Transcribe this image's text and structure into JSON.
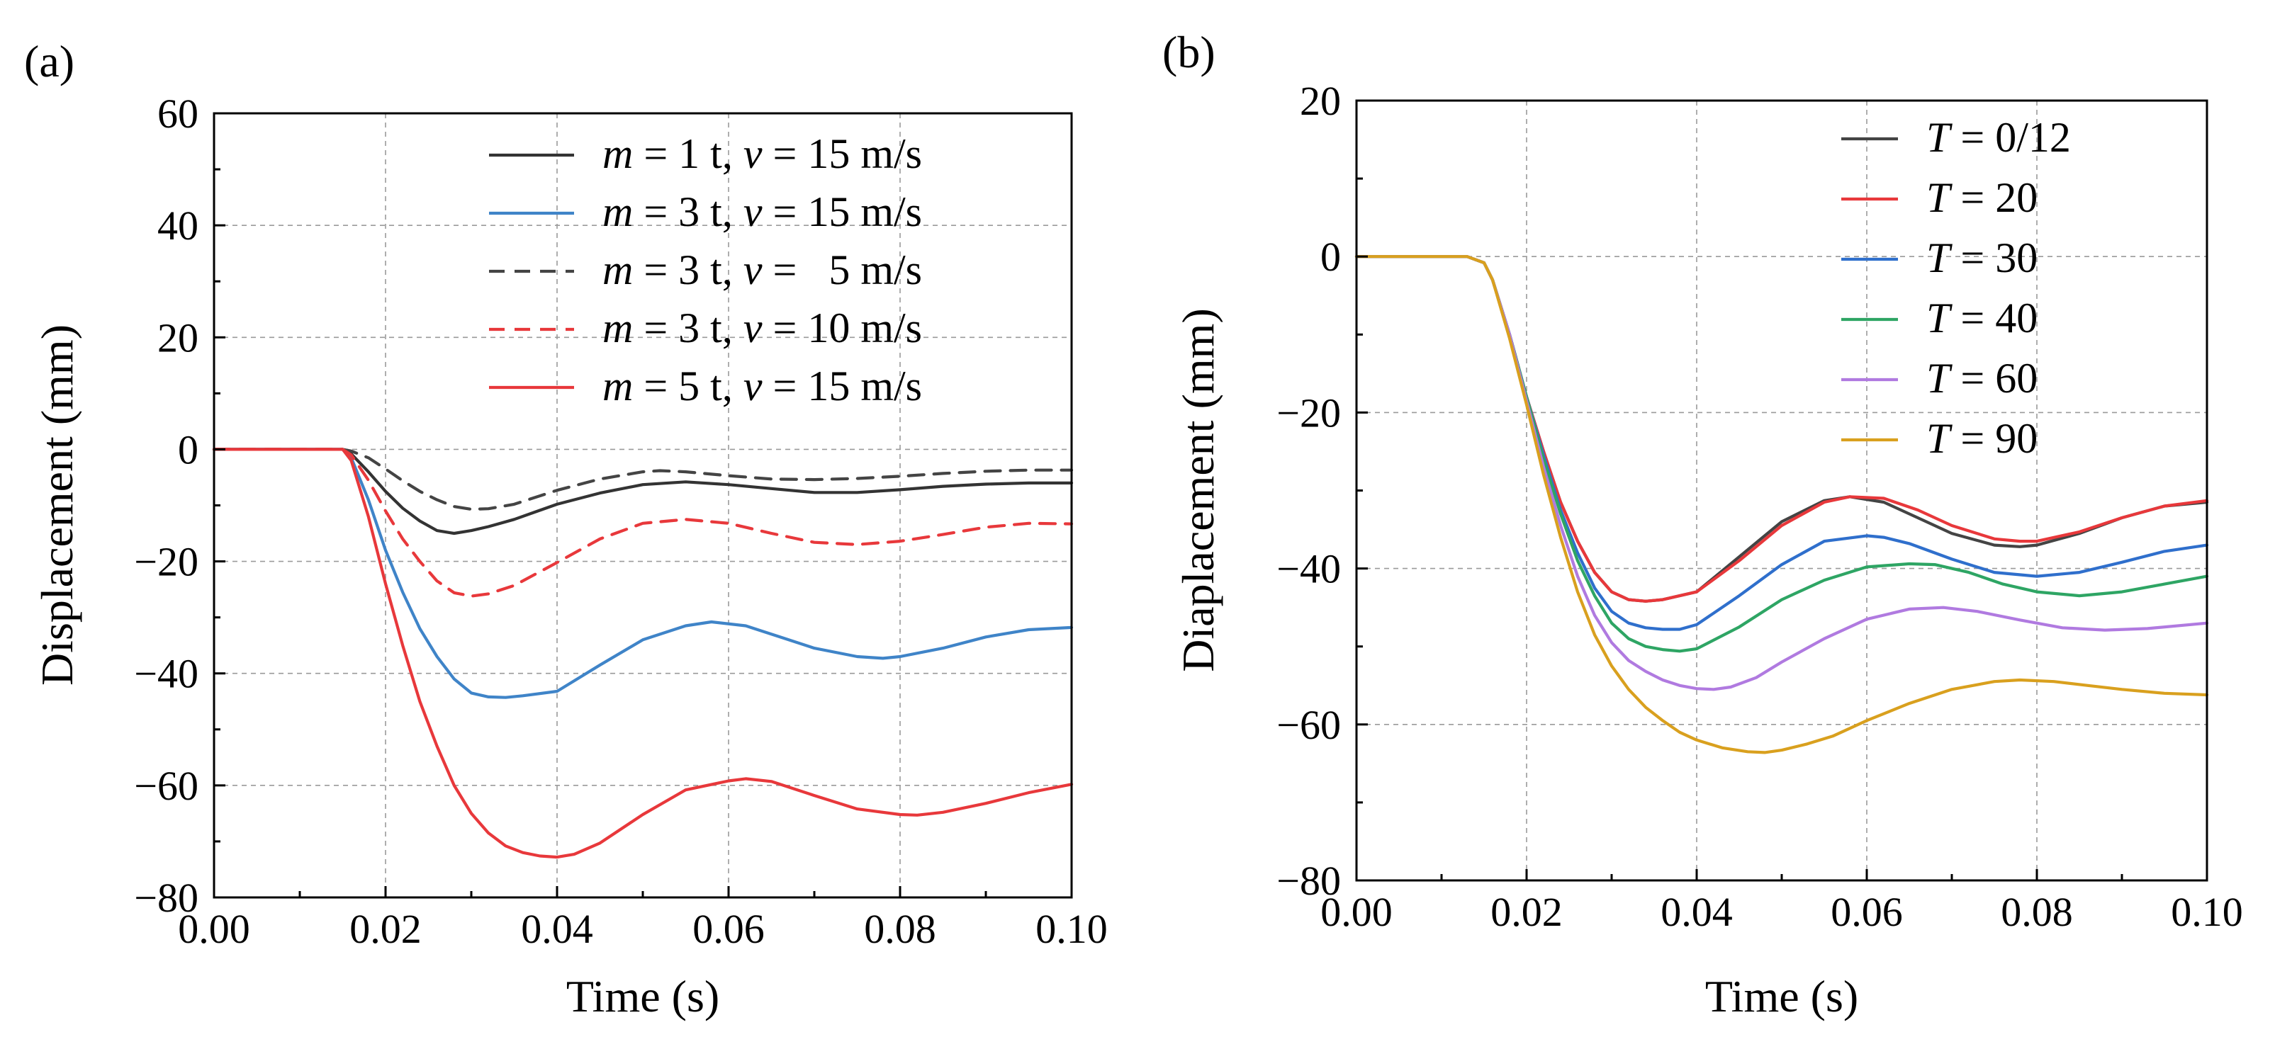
{
  "chart_data": [
    {
      "type": "line",
      "panel_label": "(a)",
      "xlabel": "Time (s)",
      "ylabel": "Displacement (mm)",
      "xlim": [
        0,
        0.1
      ],
      "ylim": [
        -80,
        60
      ],
      "xticks": [
        0,
        0.02,
        0.04,
        0.06,
        0.08,
        0.1
      ],
      "xtick_labels": [
        "0.00",
        "0.02",
        "0.04",
        "0.06",
        "0.08",
        "0.10"
      ],
      "yticks": [
        -80,
        -60,
        -40,
        -20,
        0,
        20,
        40,
        60
      ],
      "ytick_labels": [
        "−80",
        "−60",
        "−40",
        "−20",
        "0",
        "20",
        "40",
        "60"
      ],
      "grid": true,
      "legend_position": "top-right",
      "series": [
        {
          "name": "m = 1 t, v = 15 m/s",
          "legend": {
            "m": "m",
            "m_val": " = 1 t, ",
            "v": "v",
            "v_val": " = 15 m/s"
          },
          "color": "#333333",
          "dash": "solid",
          "x": [
            0,
            0.015,
            0.016,
            0.018,
            0.02,
            0.022,
            0.024,
            0.026,
            0.028,
            0.03,
            0.032,
            0.035,
            0.04,
            0.045,
            0.05,
            0.055,
            0.06,
            0.065,
            0.07,
            0.075,
            0.08,
            0.085,
            0.09,
            0.095,
            0.1
          ],
          "y": [
            0,
            0,
            -0.8,
            -4,
            -7.5,
            -10.5,
            -12.8,
            -14.5,
            -15,
            -14.5,
            -13.8,
            -12.5,
            -9.8,
            -7.8,
            -6.3,
            -5.8,
            -6.3,
            -7,
            -7.7,
            -7.7,
            -7.2,
            -6.6,
            -6.2,
            -6,
            -6
          ]
        },
        {
          "name": "m = 3 t, v = 15 m/s",
          "legend": {
            "m": "m",
            "m_val": " = 3 t, ",
            "v": "v",
            "v_val": " = 15 m/s"
          },
          "color": "#3f84c8",
          "dash": "solid",
          "x": [
            0,
            0.015,
            0.016,
            0.018,
            0.02,
            0.022,
            0.024,
            0.026,
            0.028,
            0.03,
            0.032,
            0.034,
            0.036,
            0.04,
            0.045,
            0.05,
            0.055,
            0.058,
            0.062,
            0.066,
            0.07,
            0.075,
            0.078,
            0.08,
            0.085,
            0.09,
            0.095,
            0.1
          ],
          "y": [
            0,
            0,
            -1.5,
            -9,
            -18,
            -25.5,
            -32,
            -37,
            -41,
            -43.5,
            -44.2,
            -44.3,
            -44,
            -43.2,
            -38.5,
            -34,
            -31.5,
            -30.8,
            -31.5,
            -33.5,
            -35.5,
            -37,
            -37.3,
            -37,
            -35.5,
            -33.5,
            -32.2,
            -31.8
          ]
        },
        {
          "name": "m = 3 t, v =   5 m/s",
          "legend": {
            "m": "m",
            "m_val": " = 3 t, ",
            "v": "v",
            "v_val": " =   5 m/s"
          },
          "color": "#444444",
          "dash": "dashed",
          "x": [
            0,
            0.015,
            0.016,
            0.018,
            0.02,
            0.022,
            0.024,
            0.026,
            0.028,
            0.03,
            0.032,
            0.035,
            0.04,
            0.045,
            0.05,
            0.052,
            0.055,
            0.06,
            0.065,
            0.07,
            0.075,
            0.08,
            0.085,
            0.09,
            0.095,
            0.1
          ],
          "y": [
            0,
            0,
            -0.3,
            -1.5,
            -3.5,
            -5.6,
            -7.5,
            -9,
            -10.2,
            -10.7,
            -10.6,
            -9.8,
            -7.3,
            -5.3,
            -4,
            -3.8,
            -4,
            -4.7,
            -5.3,
            -5.4,
            -5.2,
            -4.8,
            -4.3,
            -3.9,
            -3.7,
            -3.7
          ]
        },
        {
          "name": "m = 3 t, v = 10 m/s",
          "legend": {
            "m": "m",
            "m_val": " = 3 t, ",
            "v": "v",
            "v_val": " = 10 m/s"
          },
          "color": "#e8383b",
          "dash": "dashed",
          "x": [
            0,
            0.015,
            0.016,
            0.018,
            0.02,
            0.022,
            0.024,
            0.026,
            0.028,
            0.03,
            0.032,
            0.035,
            0.04,
            0.045,
            0.05,
            0.055,
            0.06,
            0.065,
            0.07,
            0.075,
            0.08,
            0.085,
            0.09,
            0.095,
            0.1
          ],
          "y": [
            0,
            0,
            -1,
            -5.5,
            -11,
            -16,
            -20,
            -23.5,
            -25.6,
            -26.2,
            -25.8,
            -24.3,
            -20.2,
            -16,
            -13.2,
            -12.5,
            -13.2,
            -15,
            -16.6,
            -17,
            -16.4,
            -15.2,
            -13.9,
            -13.2,
            -13.3
          ]
        },
        {
          "name": "m = 5 t, v = 15 m/s",
          "legend": {
            "m": "m",
            "m_val": " = 5 t, ",
            "v": "v",
            "v_val": " = 15 m/s"
          },
          "color": "#e8383b",
          "dash": "solid",
          "x": [
            0,
            0.015,
            0.016,
            0.018,
            0.02,
            0.022,
            0.024,
            0.026,
            0.028,
            0.03,
            0.032,
            0.034,
            0.036,
            0.038,
            0.04,
            0.042,
            0.045,
            0.05,
            0.055,
            0.06,
            0.062,
            0.065,
            0.07,
            0.075,
            0.08,
            0.082,
            0.085,
            0.09,
            0.095,
            0.1
          ],
          "y": [
            0,
            0,
            -2,
            -12,
            -24,
            -35,
            -45,
            -53,
            -60,
            -65,
            -68.5,
            -70.8,
            -72,
            -72.6,
            -72.8,
            -72.3,
            -70.3,
            -65.2,
            -60.8,
            -59.2,
            -58.8,
            -59.3,
            -61.8,
            -64.2,
            -65.2,
            -65.3,
            -64.8,
            -63.2,
            -61.3,
            -59.8
          ]
        }
      ]
    },
    {
      "type": "line",
      "panel_label": "(b)",
      "xlabel": "Time (s)",
      "ylabel": "Diaplacement (mm)",
      "xlim": [
        0,
        0.1
      ],
      "ylim": [
        -80,
        20
      ],
      "xticks": [
        0,
        0.02,
        0.04,
        0.06,
        0.08,
        0.1
      ],
      "xtick_labels": [
        "0.00",
        "0.02",
        "0.04",
        "0.06",
        "0.08",
        "0.10"
      ],
      "yticks": [
        -80,
        -60,
        -40,
        -20,
        0,
        20
      ],
      "ytick_labels": [
        "−80",
        "−60",
        "−40",
        "−20",
        "0",
        "20"
      ],
      "grid": true,
      "legend_position": "top-right",
      "series": [
        {
          "name": "T = 0/12",
          "legend": {
            "var": "T",
            "val": " = 0/12"
          },
          "color": "#444444",
          "dash": "solid",
          "x": [
            0,
            0.013,
            0.015,
            0.016,
            0.018,
            0.02,
            0.022,
            0.024,
            0.026,
            0.028,
            0.03,
            0.032,
            0.034,
            0.036,
            0.04,
            0.045,
            0.05,
            0.055,
            0.058,
            0.062,
            0.066,
            0.07,
            0.075,
            0.078,
            0.08,
            0.085,
            0.09,
            0.095,
            0.1
          ],
          "y": [
            0,
            0,
            -0.8,
            -3,
            -10,
            -18,
            -25,
            -31.5,
            -36.5,
            -40.5,
            -43,
            -44,
            -44.2,
            -44,
            -43,
            -38.5,
            -34,
            -31.3,
            -30.8,
            -31.5,
            -33.5,
            -35.5,
            -37,
            -37.2,
            -37,
            -35.5,
            -33.5,
            -32,
            -31.5
          ]
        },
        {
          "name": "T = 20",
          "legend": {
            "var": "T",
            "val": " = 20"
          },
          "color": "#e8383b",
          "dash": "solid",
          "x": [
            0,
            0.013,
            0.015,
            0.016,
            0.018,
            0.02,
            0.022,
            0.024,
            0.026,
            0.028,
            0.03,
            0.032,
            0.034,
            0.036,
            0.04,
            0.045,
            0.05,
            0.055,
            0.058,
            0.062,
            0.066,
            0.07,
            0.075,
            0.078,
            0.08,
            0.085,
            0.09,
            0.095,
            0.1
          ],
          "y": [
            0,
            0,
            -0.8,
            -3,
            -10,
            -18,
            -25,
            -31.5,
            -36.5,
            -40.5,
            -43,
            -44,
            -44.2,
            -44,
            -43,
            -39,
            -34.5,
            -31.5,
            -30.8,
            -31,
            -32.5,
            -34.5,
            -36.2,
            -36.5,
            -36.5,
            -35.3,
            -33.5,
            -32,
            -31.3
          ]
        },
        {
          "name": "T = 30",
          "legend": {
            "var": "T",
            "val": " = 30"
          },
          "color": "#2f6fcc",
          "dash": "solid",
          "x": [
            0,
            0.013,
            0.015,
            0.016,
            0.018,
            0.02,
            0.022,
            0.024,
            0.026,
            0.028,
            0.03,
            0.032,
            0.034,
            0.036,
            0.038,
            0.04,
            0.045,
            0.05,
            0.055,
            0.06,
            0.062,
            0.065,
            0.07,
            0.075,
            0.08,
            0.085,
            0.09,
            0.095,
            0.1
          ],
          "y": [
            0,
            0,
            -0.8,
            -3,
            -10,
            -18,
            -25.5,
            -32.5,
            -38,
            -42.5,
            -45.5,
            -47,
            -47.6,
            -47.8,
            -47.8,
            -47.2,
            -43.5,
            -39.5,
            -36.5,
            -35.8,
            -36,
            -36.8,
            -38.8,
            -40.5,
            -41,
            -40.5,
            -39.2,
            -37.8,
            -37
          ]
        },
        {
          "name": "T = 40",
          "legend": {
            "var": "T",
            "val": " = 40"
          },
          "color": "#2ea564",
          "dash": "solid",
          "x": [
            0,
            0.013,
            0.015,
            0.016,
            0.018,
            0.02,
            0.022,
            0.024,
            0.026,
            0.028,
            0.03,
            0.032,
            0.034,
            0.036,
            0.038,
            0.04,
            0.045,
            0.05,
            0.055,
            0.06,
            0.065,
            0.068,
            0.072,
            0.076,
            0.08,
            0.085,
            0.09,
            0.095,
            0.1
          ],
          "y": [
            0,
            0,
            -0.8,
            -3,
            -10,
            -18,
            -26,
            -33,
            -39,
            -43.5,
            -47,
            -49,
            -50,
            -50.4,
            -50.6,
            -50.3,
            -47.5,
            -44,
            -41.5,
            -39.8,
            -39.4,
            -39.5,
            -40.5,
            -42,
            -43,
            -43.5,
            -43,
            -42,
            -41
          ]
        },
        {
          "name": "T = 60",
          "legend": {
            "var": "T",
            "val": " = 60"
          },
          "color": "#b07ae0",
          "dash": "solid",
          "x": [
            0,
            0.013,
            0.015,
            0.016,
            0.018,
            0.02,
            0.022,
            0.024,
            0.026,
            0.028,
            0.03,
            0.032,
            0.034,
            0.036,
            0.038,
            0.04,
            0.042,
            0.044,
            0.047,
            0.05,
            0.055,
            0.06,
            0.065,
            0.069,
            0.073,
            0.078,
            0.083,
            0.088,
            0.093,
            0.1
          ],
          "y": [
            0,
            0,
            -0.8,
            -3,
            -10,
            -18.5,
            -27,
            -34.5,
            -41,
            -46,
            -49.5,
            -51.8,
            -53.2,
            -54.3,
            -55,
            -55.4,
            -55.5,
            -55.2,
            -54,
            -52,
            -49,
            -46.5,
            -45.2,
            -45,
            -45.5,
            -46.6,
            -47.6,
            -47.9,
            -47.7,
            -47
          ]
        },
        {
          "name": "T = 90",
          "legend": {
            "var": "T",
            "val": " = 90"
          },
          "color": "#d9a01e",
          "dash": "solid",
          "x": [
            0,
            0.013,
            0.015,
            0.016,
            0.018,
            0.02,
            0.022,
            0.024,
            0.026,
            0.028,
            0.03,
            0.032,
            0.034,
            0.036,
            0.038,
            0.04,
            0.043,
            0.046,
            0.048,
            0.05,
            0.053,
            0.056,
            0.06,
            0.065,
            0.07,
            0.075,
            0.078,
            0.082,
            0.086,
            0.09,
            0.095,
            0.1
          ],
          "y": [
            0,
            0,
            -0.8,
            -3,
            -10.5,
            -19,
            -28,
            -36,
            -43,
            -48.5,
            -52.5,
            -55.5,
            -57.8,
            -59.5,
            -61,
            -62,
            -63,
            -63.5,
            -63.6,
            -63.3,
            -62.5,
            -61.5,
            -59.5,
            -57.3,
            -55.5,
            -54.5,
            -54.3,
            -54.5,
            -55,
            -55.5,
            -56,
            -56.2
          ]
        }
      ]
    }
  ]
}
